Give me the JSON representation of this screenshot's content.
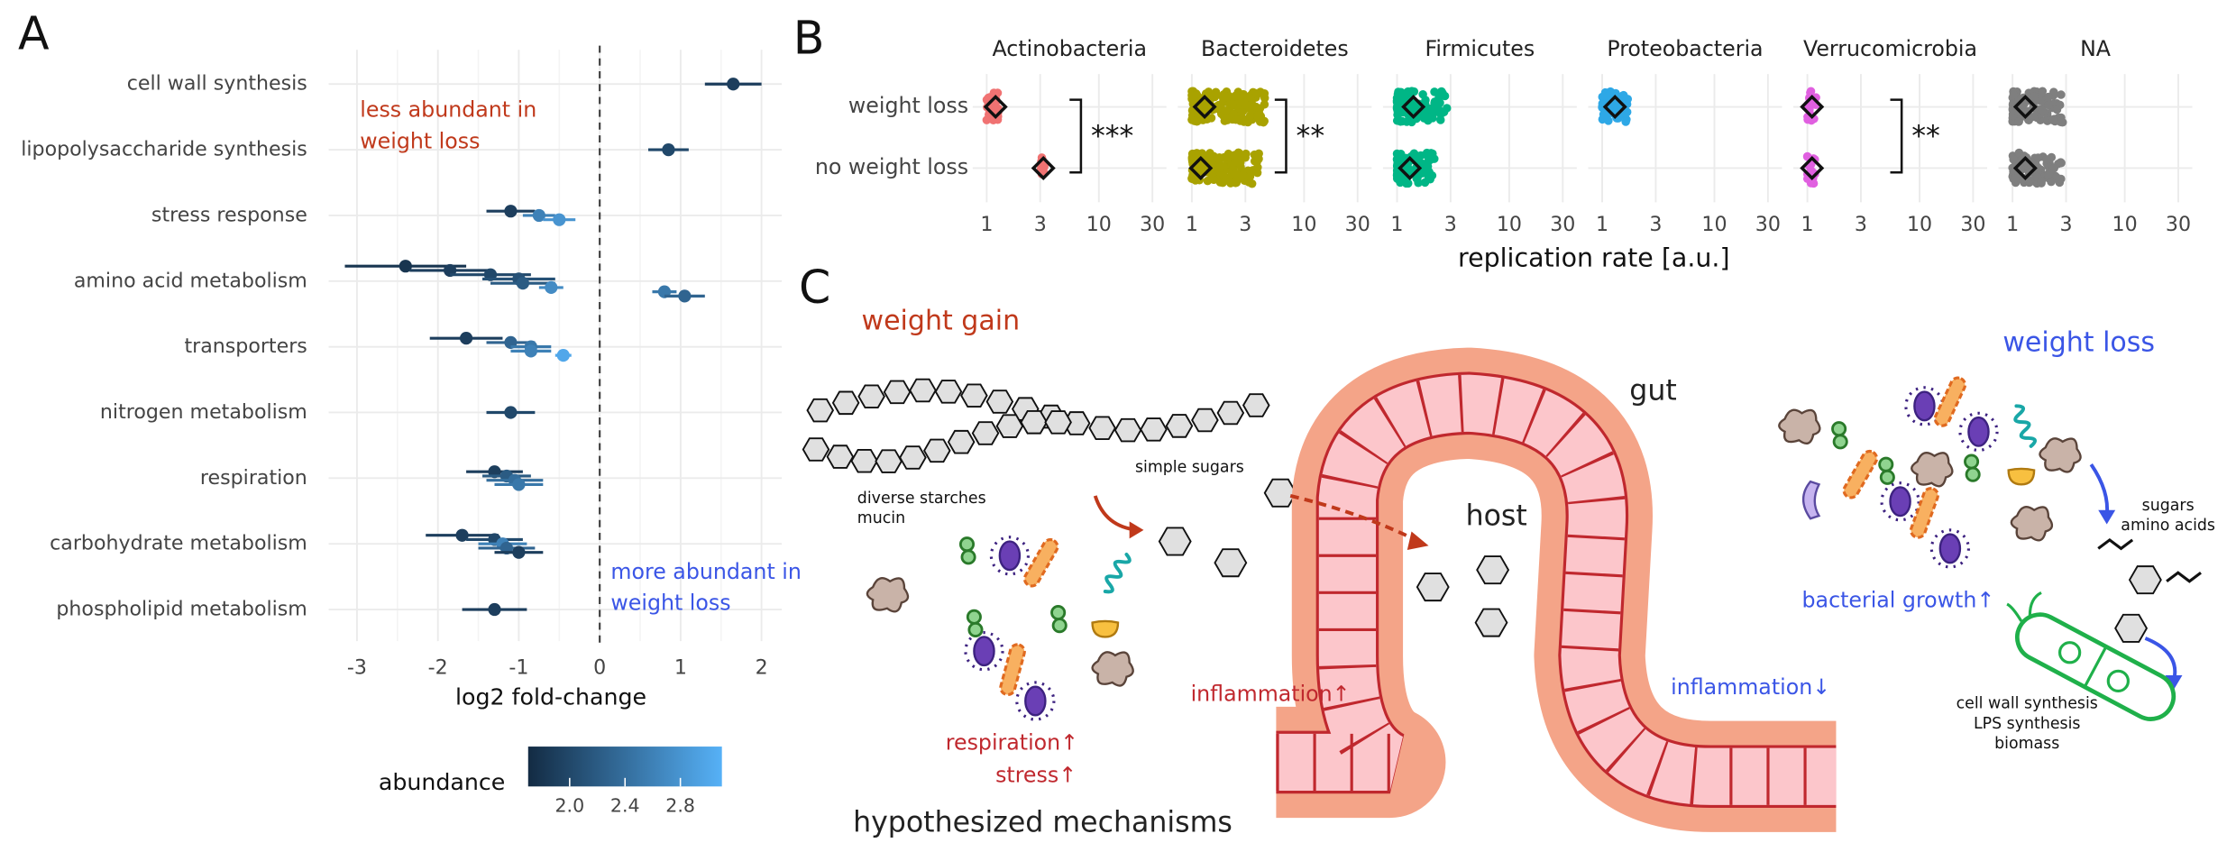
{
  "panel_labels": [
    "A",
    "B",
    "C"
  ],
  "chart_data": [
    {
      "type": "forest",
      "x_label": "log2 fold-change",
      "xlim": [
        -3.35,
        2.25
      ],
      "xticks": [
        -3,
        -2,
        -1,
        0,
        1,
        2
      ],
      "vline": 0,
      "grid": true,
      "annotations": [
        {
          "lines": [
            "less abundant in",
            "weight loss"
          ],
          "color": "#c0391b"
        },
        {
          "lines": [
            "more abundant in",
            "weight loss"
          ],
          "color": "#3a55e6"
        }
      ],
      "legend_title": "abundance",
      "clim": [
        1.7,
        3.1
      ],
      "colorscale": [
        "#132B43",
        "#56B1F7"
      ],
      "cticks": [
        {
          "value": 2,
          "label": "2.0"
        },
        2.4,
        2.8
      ],
      "series": [
        {
          "name": "cell wall synthesis",
          "values": [
            1.65
          ],
          "errors": [
            0.35
          ],
          "abundance": [
            1.9
          ]
        },
        {
          "name": "lipopolysaccharide synthesis",
          "values": [
            0.85
          ],
          "errors": [
            0.25
          ],
          "abundance": [
            2.0
          ]
        },
        {
          "name": "stress response",
          "values": [
            -1.1,
            -0.75,
            -0.5
          ],
          "errors": [
            0.3,
            0.2,
            0.2
          ],
          "abundance": [
            1.9,
            2.6,
            2.8
          ]
        },
        {
          "name": "amino acid metabolism",
          "values": [
            -2.4,
            -1.85,
            -1.35,
            -1.0,
            -0.95,
            -0.6,
            0.8,
            1.05
          ],
          "errors": [
            0.75,
            0.5,
            0.5,
            0.45,
            0.4,
            0.15,
            0.15,
            0.25
          ],
          "abundance": [
            1.8,
            1.9,
            2.0,
            2.1,
            2.2,
            2.7,
            2.5,
            2.3
          ]
        },
        {
          "name": "transporters",
          "values": [
            -1.65,
            -1.1,
            -0.85,
            -0.85,
            -0.45
          ],
          "errors": [
            0.45,
            0.3,
            0.25,
            0.25,
            0.1
          ],
          "abundance": [
            1.9,
            2.3,
            2.5,
            2.6,
            3.0
          ]
        },
        {
          "name": "nitrogen metabolism",
          "values": [
            -1.1
          ],
          "errors": [
            0.3
          ],
          "abundance": [
            2.0
          ]
        },
        {
          "name": "respiration",
          "values": [
            -1.3,
            -1.15,
            -1.05,
            -1.0
          ],
          "errors": [
            0.35,
            0.3,
            0.35,
            0.3
          ],
          "abundance": [
            1.9,
            2.2,
            2.4,
            2.5
          ]
        },
        {
          "name": "carbohydrate metabolism",
          "values": [
            -1.7,
            -1.3,
            -1.2,
            -1.15,
            -1.0
          ],
          "errors": [
            0.45,
            0.35,
            0.3,
            0.35,
            0.3
          ],
          "abundance": [
            1.9,
            2.0,
            2.6,
            2.3,
            1.9
          ]
        },
        {
          "name": "phospholipid metabolism",
          "values": [
            -1.3
          ],
          "errors": [
            0.4
          ],
          "abundance": [
            1.9
          ]
        }
      ]
    },
    {
      "type": "strip",
      "x_label": "replication rate [a.u.]",
      "log_x": true,
      "xlim": [
        0.75,
        40
      ],
      "xticks": [
        1,
        3,
        10,
        30
      ],
      "grid": true,
      "categories": [
        "weight loss",
        "no weight loss"
      ],
      "facets": [
        {
          "name": "Actinobacteria",
          "color": "#f07272",
          "values": [
            1.2,
            3.2
          ],
          "ranges": [
            [
              1.0,
              1.3
            ],
            [
              3.0,
              3.3
            ]
          ],
          "significance": "***"
        },
        {
          "name": "Bacteroidetes",
          "color": "#a9a200",
          "values": [
            1.3,
            1.2
          ],
          "ranges": [
            [
              1.0,
              4.5
            ],
            [
              1.0,
              4.0
            ]
          ],
          "significance": "**"
        },
        {
          "name": "Firmicutes",
          "color": "#00b686",
          "values": [
            1.4,
            1.3
          ],
          "ranges": [
            [
              1.0,
              2.8
            ],
            [
              1.0,
              2.2
            ]
          ]
        },
        {
          "name": "Proteobacteria",
          "color": "#2ea8e6",
          "values": [
            1.3,
            null
          ],
          "ranges": [
            [
              1.0,
              1.7
            ],
            null
          ]
        },
        {
          "name": "Verrucomicrobia",
          "color": "#e060e0",
          "values": [
            1.1,
            1.1
          ],
          "ranges": [
            [
              1.0,
              1.2
            ],
            [
              1.0,
              1.2
            ]
          ],
          "significance": "**"
        },
        {
          "name": "NA",
          "color": "#7f7f7f",
          "values": [
            1.3,
            1.3
          ],
          "ranges": [
            [
              1.0,
              2.8
            ],
            [
              1.0,
              2.8
            ]
          ]
        }
      ]
    }
  ],
  "diagram": {
    "title": "hypothesized mechanisms",
    "weight_gain": "weight gain",
    "starches": [
      "diverse starches",
      "mucin"
    ],
    "simple_sugars": "simple sugars",
    "gut": "gut",
    "host": "host",
    "inflammation_up": "inflammation↑",
    "respiration": "respiration↑",
    "stress": "stress↑",
    "weight_loss": "weight loss",
    "sugars": [
      "sugars",
      "amino acids"
    ],
    "growth": "bacterial growth↑",
    "inflammation_down": "inflammation↓",
    "outputs": [
      "cell wall synthesis",
      "LPS synthesis",
      "biomass"
    ]
  }
}
